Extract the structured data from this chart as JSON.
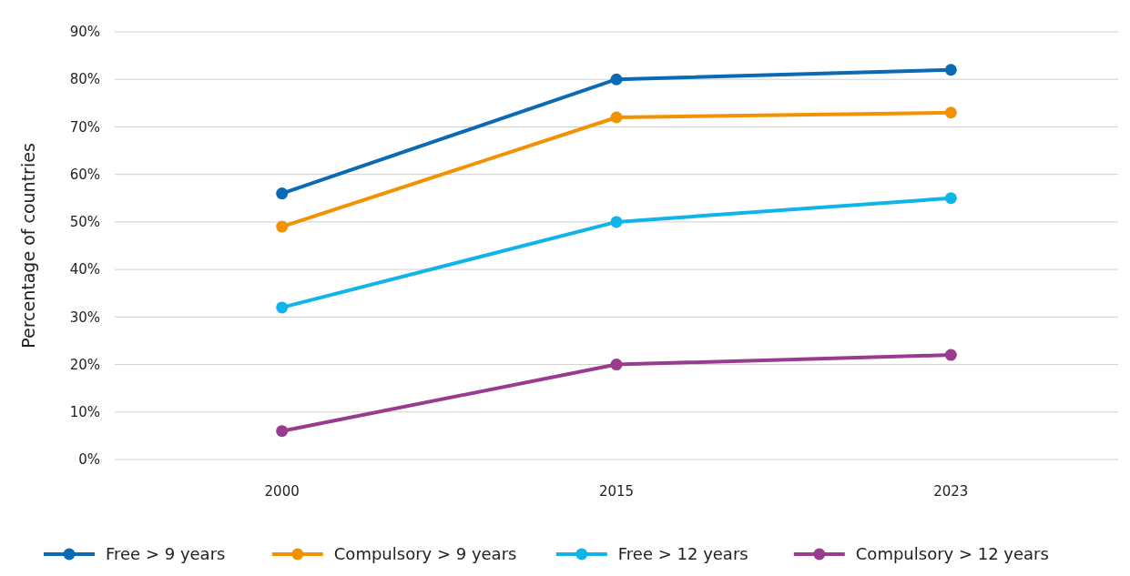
{
  "chart_data": {
    "type": "line",
    "ylabel": "Percentage of countries",
    "categories": [
      "2000",
      "2015",
      "2023"
    ],
    "series": [
      {
        "name": "Free > 9 years",
        "color": "#0a6ab4",
        "values": [
          56,
          80,
          82
        ]
      },
      {
        "name": "Compulsory > 9 years",
        "color": "#f39200",
        "values": [
          49,
          72,
          73
        ]
      },
      {
        "name": "Free > 12 years",
        "color": "#10b4e8",
        "values": [
          32,
          50,
          55
        ]
      },
      {
        "name": "Compulsory > 12 years",
        "color": "#993b8e",
        "values": [
          6,
          20,
          22
        ]
      }
    ],
    "ylim": [
      0,
      90
    ],
    "yticks": [
      {
        "value": 0,
        "label": "0%"
      },
      {
        "value": 10,
        "label": "10%"
      },
      {
        "value": 20,
        "label": "20%"
      },
      {
        "value": 30,
        "label": "30%"
      },
      {
        "value": 40,
        "label": "40%"
      },
      {
        "value": 50,
        "label": "50%"
      },
      {
        "value": 60,
        "label": "60%"
      },
      {
        "value": 70,
        "label": "70%"
      },
      {
        "value": 80,
        "label": "80%"
      },
      {
        "value": 90,
        "label": "90%"
      }
    ],
    "grid": "y",
    "legend": "bottom",
    "marker": "circle",
    "line_style": "solid"
  }
}
